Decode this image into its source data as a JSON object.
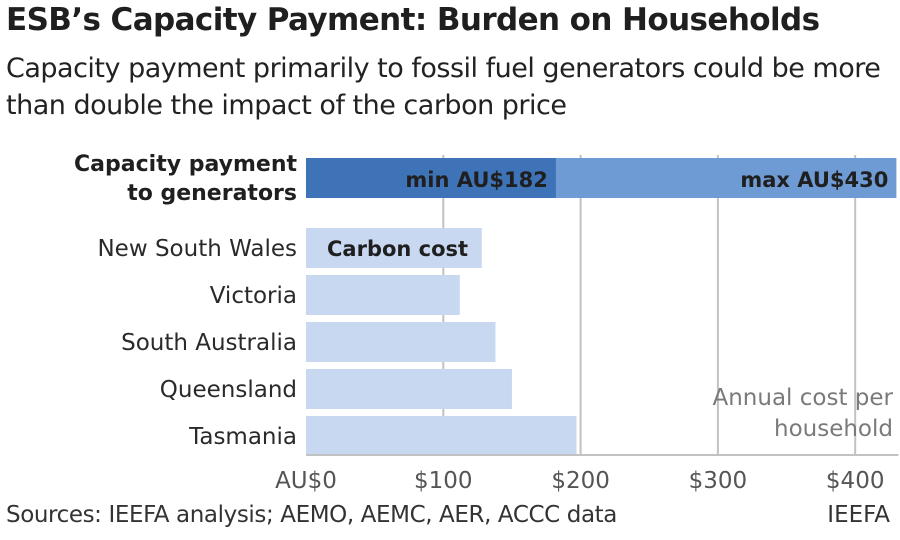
{
  "title": "ESB’s Capacity Payment: Burden on Households",
  "subtitle": "Capacity payment primarily to fossil fuel generators could be more than double the impact of the carbon price",
  "source": "Sources: IEEFA analysis; AEMO, AEMC, AER, ACCC data",
  "brand": "IEEFA",
  "colors": {
    "min": "#3f73b8",
    "max": "#6f9bd4",
    "carbon": "#c8d8f0",
    "grid": "#c2c2c2",
    "axis_text": "#555555"
  },
  "chart_data": {
    "type": "bar",
    "orientation": "horizontal",
    "xlim": [
      0,
      430
    ],
    "x_ticks": [
      0,
      100,
      200,
      300,
      400
    ],
    "x_tick_labels": [
      "AU$0",
      "$100",
      "$200",
      "$300",
      "$400"
    ],
    "xlabel": "Annual cost per household",
    "grid": true,
    "capacity": {
      "label_line1": "Capacity payment",
      "label_line2": "to generators",
      "min": 182,
      "max": 430,
      "min_label": "min AU$182",
      "max_label": "max AU$430"
    },
    "carbon": {
      "label": "Carbon cost",
      "categories": [
        "New South Wales",
        "Victoria",
        "South Australia",
        "Queensland",
        "Tasmania"
      ],
      "values": [
        128,
        112,
        138,
        150,
        197
      ]
    }
  }
}
